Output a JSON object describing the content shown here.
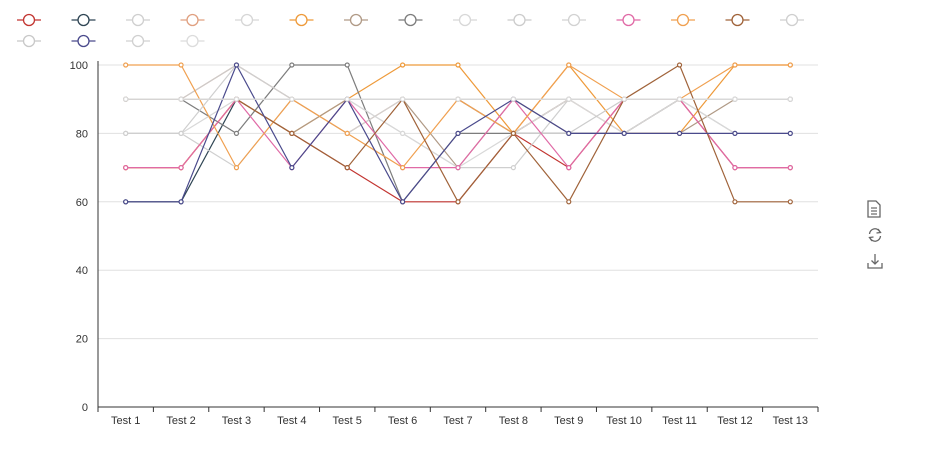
{
  "chart_data": {
    "type": "line",
    "categories": [
      "Test 1",
      "Test 2",
      "Test 3",
      "Test 4",
      "Test 5",
      "Test 6",
      "Test 7",
      "Test 8",
      "Test 9",
      "Test 10",
      "Test 11",
      "Test 12",
      "Test 13"
    ],
    "ylim": [
      0,
      100
    ],
    "yticks": [
      0,
      20,
      40,
      60,
      80,
      100
    ],
    "grid": true,
    "legend_position": "top",
    "series": [
      {
        "color": "#c23531",
        "values": [
          70,
          70,
          90,
          80,
          70,
          60,
          60,
          80,
          70,
          90,
          90,
          70,
          70
        ]
      },
      {
        "color": "#2f4554",
        "values": [
          60,
          60,
          90,
          90,
          90,
          90,
          90,
          80,
          90,
          90,
          90,
          90,
          90
        ]
      },
      {
        "color": "#cfcfcf",
        "values": [
          80,
          80,
          70,
          90,
          90,
          80,
          70,
          70,
          90,
          90,
          90,
          80,
          80
        ]
      },
      {
        "color": "#e0a080",
        "values": [
          90,
          90,
          100,
          90,
          80,
          90,
          90,
          80,
          90,
          80,
          90,
          90,
          90
        ]
      },
      {
        "color": "#d6d6d6",
        "values": [
          90,
          90,
          90,
          90,
          90,
          90,
          90,
          90,
          90,
          80,
          90,
          80,
          80
        ]
      },
      {
        "color": "#ee9a3a",
        "values": [
          70,
          70,
          90,
          80,
          90,
          100,
          100,
          80,
          100,
          80,
          80,
          100,
          100
        ]
      },
      {
        "color": "#b09a86",
        "values": [
          90,
          90,
          90,
          80,
          90,
          90,
          70,
          90,
          80,
          80,
          80,
          90,
          90
        ]
      },
      {
        "color": "#7d7d7d",
        "values": [
          90,
          90,
          80,
          100,
          100,
          60,
          80,
          80,
          80,
          80,
          90,
          90,
          90
        ]
      },
      {
        "color": "#d8d8d8",
        "values": [
          80,
          80,
          90,
          90,
          90,
          80,
          70,
          80,
          90,
          80,
          90,
          80,
          80
        ]
      },
      {
        "color": "#cccccc",
        "values": [
          90,
          90,
          100,
          90,
          90,
          90,
          90,
          80,
          80,
          90,
          90,
          90,
          90
        ]
      },
      {
        "color": "#d2d2d2",
        "values": [
          90,
          90,
          90,
          90,
          80,
          90,
          90,
          90,
          90,
          90,
          90,
          90,
          90
        ]
      },
      {
        "color": "#e06aa6",
        "values": [
          70,
          70,
          90,
          70,
          90,
          70,
          70,
          90,
          70,
          90,
          90,
          70,
          70
        ]
      },
      {
        "color": "#f0a050",
        "values": [
          100,
          100,
          70,
          90,
          80,
          70,
          90,
          80,
          100,
          90,
          90,
          100,
          100
        ]
      },
      {
        "color": "#a0633a",
        "values": [
          90,
          90,
          90,
          80,
          70,
          90,
          60,
          80,
          60,
          90,
          100,
          60,
          60
        ]
      },
      {
        "color": "#cfcfcf",
        "values": [
          80,
          80,
          100,
          90,
          90,
          90,
          90,
          90,
          90,
          90,
          90,
          90,
          90
        ]
      },
      {
        "color": "#c8c8c8",
        "values": [
          90,
          90,
          90,
          90,
          90,
          90,
          90,
          90,
          90,
          90,
          90,
          90,
          90
        ]
      },
      {
        "color": "#4a4a8c",
        "values": [
          60,
          60,
          100,
          70,
          90,
          60,
          80,
          90,
          80,
          80,
          80,
          80,
          80
        ]
      },
      {
        "color": "#d0d0d0",
        "values": [
          90,
          90,
          90,
          90,
          90,
          90,
          90,
          90,
          90,
          90,
          90,
          90,
          90
        ]
      },
      {
        "color": "#dcdcdc",
        "values": [
          90,
          90,
          90,
          90,
          90,
          90,
          90,
          90,
          90,
          90,
          90,
          90,
          90
        ]
      }
    ]
  },
  "legend": {
    "items": [
      {
        "label": "",
        "color": "#c23531"
      },
      {
        "label": "",
        "color": "#2f4554"
      },
      {
        "label": "",
        "color": "#cfcfcf"
      },
      {
        "label": "",
        "color": "#e0a080"
      },
      {
        "label": "",
        "color": "#d6d6d6"
      },
      {
        "label": "",
        "color": "#ee9a3a"
      },
      {
        "label": "",
        "color": "#b09a86"
      },
      {
        "label": "",
        "color": "#7d7d7d"
      },
      {
        "label": "",
        "color": "#d8d8d8"
      },
      {
        "label": "",
        "color": "#cccccc"
      },
      {
        "label": "",
        "color": "#d2d2d2"
      },
      {
        "label": "",
        "color": "#e06aa6"
      },
      {
        "label": "",
        "color": "#f0a050"
      },
      {
        "label": "",
        "color": "#a0633a"
      },
      {
        "label": "",
        "color": "#cfcfcf"
      },
      {
        "label": "",
        "color": "#c8c8c8"
      },
      {
        "label": "",
        "color": "#4a4a8c"
      },
      {
        "label": "",
        "color": "#d0d0d0"
      },
      {
        "label": "",
        "color": "#dcdcdc"
      }
    ]
  },
  "toolbox": {
    "icons": [
      "data-view-icon",
      "restore-icon",
      "save-image-icon"
    ]
  }
}
